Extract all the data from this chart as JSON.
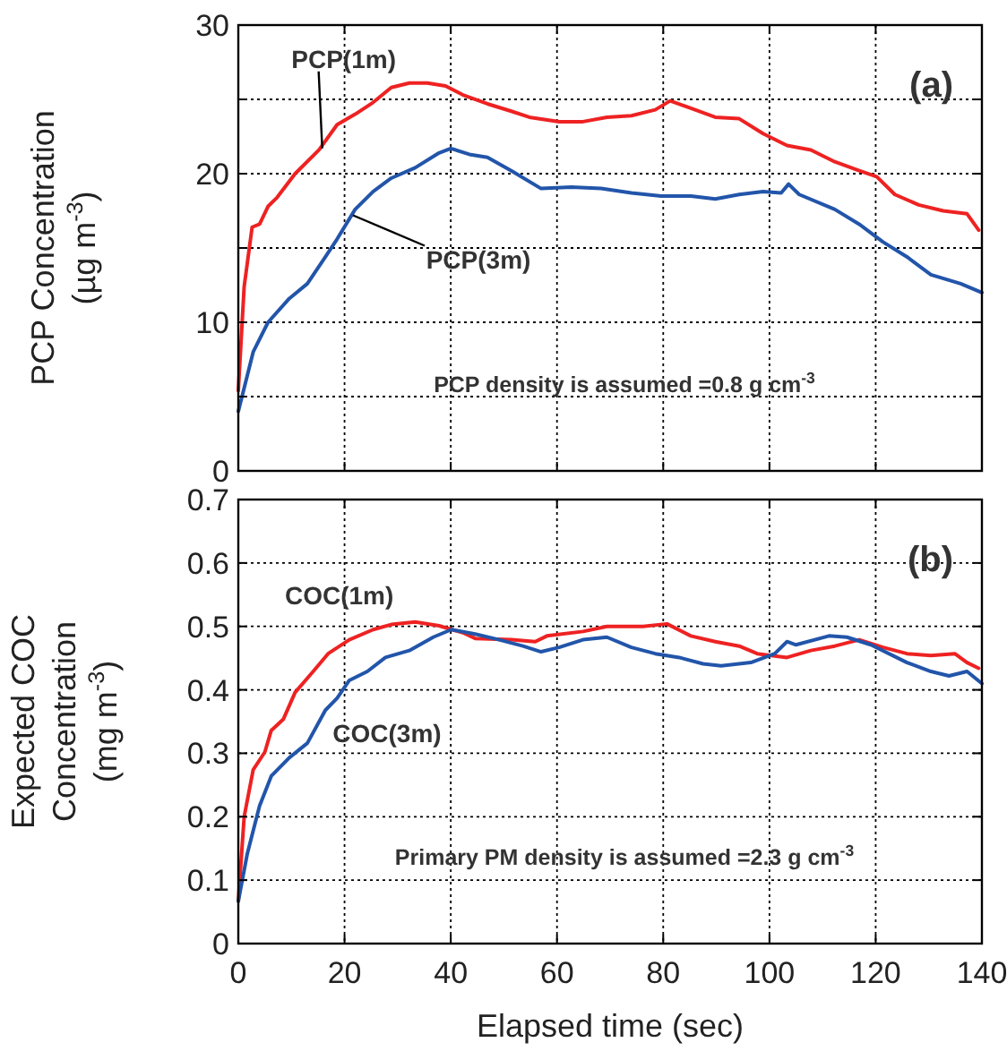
{
  "chart_data": [
    {
      "type": "line",
      "ylabel": "PCP Concentration\n(µg m$^{-3}$)",
      "xlim": [
        0,
        140
      ],
      "xticks": [
        0,
        20,
        40,
        60,
        80,
        100,
        120,
        140
      ],
      "ylim": [
        0,
        30
      ],
      "yticks": [
        0,
        {
          "value": 5,
          "label": null
        },
        10,
        {
          "value": 15,
          "label": null
        },
        20,
        {
          "value": 25,
          "label": null
        },
        30
      ],
      "tick_labels": "y",
      "grid": true,
      "marker": "none",
      "line_style": "solid",
      "annotations": [
        "(a)",
        {
          "text": "PCP(1m)",
          "x": 15.8,
          "y": 21.7
        },
        {
          "text": "PCP(3m)",
          "x": 21.6,
          "y": 17.2
        },
        "PCP density is assumed =0.8 g cm$^{-3}$"
      ],
      "series": [
        {
          "color": "#ee2222",
          "x": [
            0,
            1.1,
            2.6,
            4,
            5.6,
            7.3,
            10.7,
            15.2,
            18.6,
            22,
            25.4,
            28.8,
            32.2,
            35.6,
            39,
            42.3,
            46.9,
            51.4,
            54.8,
            60.4,
            64.9,
            69.4,
            74,
            78.5,
            81.3,
            85.2,
            89.8,
            94.3,
            98.8,
            103.3,
            107.8,
            112.3,
            116.9,
            120.2,
            123.6,
            128.1,
            132.7,
            137.2,
            139.4
          ],
          "values": [
            5.4,
            12.4,
            16.4,
            16.6,
            17.8,
            18.4,
            20,
            21.6,
            23.3,
            24,
            24.8,
            25.8,
            26.1,
            26.1,
            25.9,
            25.3,
            24.7,
            24.2,
            23.8,
            23.5,
            23.5,
            23.8,
            23.9,
            24.3,
            24.9,
            24.4,
            23.8,
            23.7,
            22.7,
            21.9,
            21.6,
            20.8,
            20.2,
            19.8,
            18.6,
            17.9,
            17.5,
            17.3,
            16.2
          ]
        },
        {
          "color": "#2255aa",
          "x": [
            0,
            2.8,
            5.6,
            9.6,
            13,
            16.4,
            18.6,
            22,
            25.4,
            28.8,
            33.3,
            37.8,
            40,
            43.5,
            46.9,
            51.4,
            57,
            62.7,
            68.3,
            74,
            79.6,
            85.2,
            89.8,
            94.3,
            98.8,
            102.2,
            103.6,
            105.6,
            112.3,
            116.9,
            121.4,
            125.9,
            130.4,
            136,
            140
          ],
          "values": [
            4,
            8,
            10,
            11.6,
            12.6,
            14.4,
            15.6,
            17.6,
            18.8,
            19.7,
            20.4,
            21.4,
            21.7,
            21.3,
            21.1,
            20.2,
            19,
            19.1,
            19,
            18.7,
            18.5,
            18.5,
            18.3,
            18.6,
            18.8,
            18.7,
            19.3,
            18.6,
            17.6,
            16.6,
            15.4,
            14.4,
            13.2,
            12.6,
            12
          ]
        }
      ]
    },
    {
      "type": "line",
      "xlabel": "Elapsed time (sec)",
      "ylabel": "Expected COC\nConcentration\n(mg m$^{-3}$)",
      "xlim": [
        0,
        140
      ],
      "xticks": [
        0,
        20,
        40,
        60,
        80,
        100,
        120,
        140
      ],
      "ylim": [
        0,
        0.7
      ],
      "yticks": [
        0,
        0.1,
        0.2,
        0.3,
        0.4,
        0.5,
        0.6,
        0.7
      ],
      "grid": true,
      "marker": "none",
      "line_style": "solid",
      "annotations": [
        "(b)",
        {
          "text": "COC(1m)",
          "x": 19,
          "y": 0.47
        },
        {
          "text": "COC(3m)",
          "x": 28,
          "y": 0.45
        },
        "Primary PM density is assumed =2.3 g cm$^{-3}$"
      ],
      "series": [
        {
          "color": "#ee2222",
          "x": [
            0,
            1.1,
            2.8,
            5,
            6.2,
            8.5,
            10.7,
            14.1,
            16.9,
            20.9,
            25.4,
            28.8,
            33.3,
            37.8,
            42.3,
            44.6,
            51.4,
            55.9,
            58.1,
            64.9,
            69.4,
            76.2,
            80.7,
            85.2,
            89.8,
            94.3,
            97.7,
            103.3,
            107.8,
            112.3,
            116.9,
            121.4,
            125.9,
            130.4,
            134.9,
            137.2,
            139.4
          ],
          "values": [
            0.067,
            0.2,
            0.274,
            0.302,
            0.336,
            0.354,
            0.396,
            0.429,
            0.457,
            0.479,
            0.495,
            0.503,
            0.507,
            0.501,
            0.49,
            0.481,
            0.479,
            0.476,
            0.485,
            0.492,
            0.5,
            0.5,
            0.504,
            0.485,
            0.476,
            0.469,
            0.457,
            0.451,
            0.462,
            0.469,
            0.479,
            0.467,
            0.457,
            0.454,
            0.457,
            0.443,
            0.434
          ]
        },
        {
          "color": "#2255aa",
          "x": [
            0,
            1.7,
            4,
            6.2,
            9.6,
            13,
            16.4,
            18.6,
            20.9,
            24.3,
            27.7,
            32.2,
            36.7,
            40.1,
            44.6,
            49.1,
            53.6,
            57,
            60.4,
            64.9,
            69.4,
            74,
            78.5,
            83,
            87.5,
            90.9,
            96.5,
            101,
            103.3,
            105,
            111.2,
            114.6,
            119.1,
            125.9,
            130.4,
            133.8,
            137.2,
            140
          ],
          "values": [
            0.067,
            0.142,
            0.217,
            0.264,
            0.293,
            0.316,
            0.368,
            0.387,
            0.415,
            0.429,
            0.451,
            0.462,
            0.483,
            0.495,
            0.488,
            0.479,
            0.469,
            0.46,
            0.467,
            0.479,
            0.483,
            0.467,
            0.457,
            0.451,
            0.441,
            0.438,
            0.443,
            0.457,
            0.476,
            0.471,
            0.485,
            0.483,
            0.471,
            0.443,
            0.429,
            0.422,
            0.429,
            0.41
          ]
        }
      ]
    }
  ]
}
